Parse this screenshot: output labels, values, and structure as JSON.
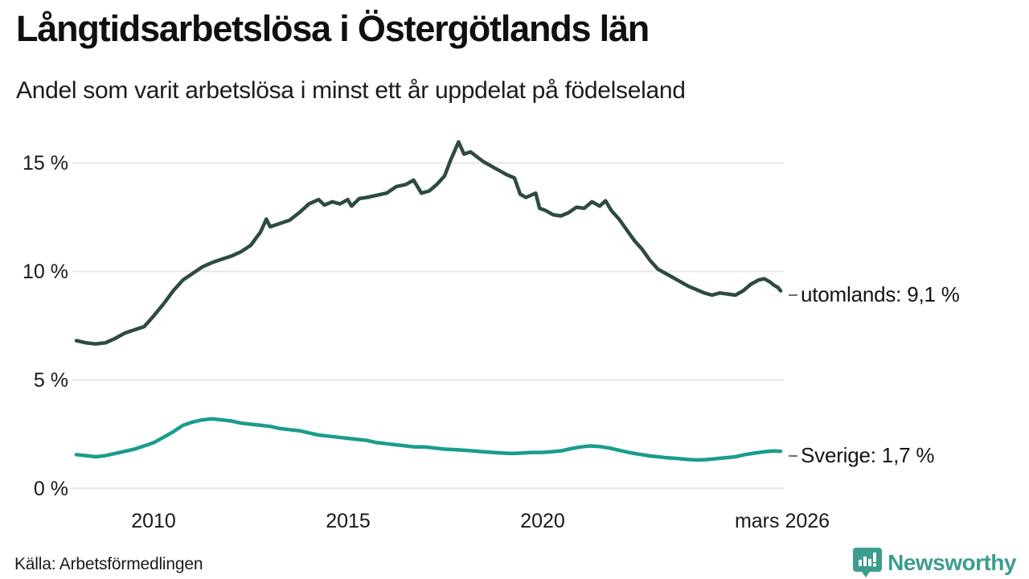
{
  "header": {
    "title": "Långtidsarbetslösa i Östergötlands län",
    "subtitle": "Andel som varit arbetslösa i minst ett år uppdelat på födelseland"
  },
  "footer": {
    "source": "Källa: Arbetsförmedlingen",
    "brand_name": "Newsworthy"
  },
  "colors": {
    "series_utomlands": "#2d4a43",
    "series_sverige": "#1a9c8c",
    "gridline": "#e8e8ea",
    "text": "#141414",
    "brand_teal": "#3d9c8e",
    "leader_dash": "#6f6f6f",
    "background": "#ffffff"
  },
  "chart_data": {
    "type": "line",
    "title": "Långtidsarbetslösa i Östergötlands län",
    "subtitle": "Andel som varit arbetslösa i minst ett år uppdelat på födelseland",
    "xlabel": "",
    "ylabel": "",
    "unit": "%",
    "grid": true,
    "legend_position": "end-of-line-labels-right",
    "x_range": [
      2008.0,
      2026.25
    ],
    "y_range": [
      0,
      16.2
    ],
    "x_axis": {
      "ticks": [
        {
          "x": 2010,
          "label": "2010"
        },
        {
          "x": 2015,
          "label": "2015"
        },
        {
          "x": 2020,
          "label": "2020"
        },
        {
          "x": 2026.17,
          "label": "mars 2026"
        }
      ]
    },
    "y_axis": {
      "ticks": [
        {
          "v": 0,
          "label": "0 %"
        },
        {
          "v": 5,
          "label": "5 %"
        },
        {
          "v": 10,
          "label": "10 %"
        },
        {
          "v": 15,
          "label": "15 %"
        }
      ]
    },
    "series": [
      {
        "name": "utomlands",
        "end_label": "utomlands: 9,1 %",
        "last_value_text": "9,1 %",
        "color": "#2d4a43",
        "points": [
          [
            2008.0,
            6.8
          ],
          [
            2008.25,
            6.7
          ],
          [
            2008.5,
            6.65
          ],
          [
            2008.75,
            6.7
          ],
          [
            2009.0,
            6.9
          ],
          [
            2009.25,
            7.15
          ],
          [
            2009.5,
            7.3
          ],
          [
            2009.75,
            7.45
          ],
          [
            2010.0,
            7.95
          ],
          [
            2010.25,
            8.5
          ],
          [
            2010.5,
            9.1
          ],
          [
            2010.75,
            9.6
          ],
          [
            2011.0,
            9.9
          ],
          [
            2011.25,
            10.2
          ],
          [
            2011.5,
            10.4
          ],
          [
            2011.75,
            10.55
          ],
          [
            2012.0,
            10.7
          ],
          [
            2012.25,
            10.9
          ],
          [
            2012.5,
            11.2
          ],
          [
            2012.75,
            11.8
          ],
          [
            2012.9,
            12.4
          ],
          [
            2013.0,
            12.05
          ],
          [
            2013.25,
            12.2
          ],
          [
            2013.5,
            12.35
          ],
          [
            2013.75,
            12.7
          ],
          [
            2014.0,
            13.1
          ],
          [
            2014.25,
            13.3
          ],
          [
            2014.4,
            13.05
          ],
          [
            2014.6,
            13.2
          ],
          [
            2014.8,
            13.1
          ],
          [
            2015.0,
            13.3
          ],
          [
            2015.1,
            13.0
          ],
          [
            2015.3,
            13.35
          ],
          [
            2015.5,
            13.4
          ],
          [
            2015.75,
            13.5
          ],
          [
            2016.0,
            13.6
          ],
          [
            2016.25,
            13.9
          ],
          [
            2016.5,
            14.0
          ],
          [
            2016.7,
            14.2
          ],
          [
            2016.9,
            13.6
          ],
          [
            2017.1,
            13.7
          ],
          [
            2017.3,
            14.0
          ],
          [
            2017.5,
            14.4
          ],
          [
            2017.65,
            15.1
          ],
          [
            2017.86,
            15.96
          ],
          [
            2018.0,
            15.4
          ],
          [
            2018.17,
            15.5
          ],
          [
            2018.35,
            15.25
          ],
          [
            2018.5,
            15.05
          ],
          [
            2018.7,
            14.85
          ],
          [
            2018.9,
            14.65
          ],
          [
            2019.1,
            14.45
          ],
          [
            2019.3,
            14.3
          ],
          [
            2019.45,
            13.55
          ],
          [
            2019.6,
            13.4
          ],
          [
            2019.85,
            13.6
          ],
          [
            2019.95,
            12.9
          ],
          [
            2020.1,
            12.8
          ],
          [
            2020.3,
            12.6
          ],
          [
            2020.5,
            12.55
          ],
          [
            2020.7,
            12.7
          ],
          [
            2020.9,
            12.95
          ],
          [
            2021.1,
            12.9
          ],
          [
            2021.3,
            13.2
          ],
          [
            2021.5,
            13.0
          ],
          [
            2021.65,
            13.25
          ],
          [
            2021.8,
            12.8
          ],
          [
            2022.0,
            12.4
          ],
          [
            2022.2,
            11.9
          ],
          [
            2022.4,
            11.4
          ],
          [
            2022.6,
            11.0
          ],
          [
            2022.8,
            10.5
          ],
          [
            2023.0,
            10.1
          ],
          [
            2023.2,
            9.9
          ],
          [
            2023.4,
            9.7
          ],
          [
            2023.6,
            9.5
          ],
          [
            2023.8,
            9.3
          ],
          [
            2024.0,
            9.15
          ],
          [
            2024.2,
            9.0
          ],
          [
            2024.4,
            8.9
          ],
          [
            2024.6,
            9.0
          ],
          [
            2024.8,
            8.95
          ],
          [
            2025.0,
            8.9
          ],
          [
            2025.2,
            9.1
          ],
          [
            2025.4,
            9.4
          ],
          [
            2025.6,
            9.6
          ],
          [
            2025.75,
            9.65
          ],
          [
            2025.9,
            9.5
          ],
          [
            2026.0,
            9.35
          ],
          [
            2026.1,
            9.25
          ],
          [
            2026.17,
            9.1
          ]
        ]
      },
      {
        "name": "Sverige",
        "end_label": "Sverige: 1,7 %",
        "last_value_text": "1,7 %",
        "color": "#1a9c8c",
        "points": [
          [
            2008.0,
            1.55
          ],
          [
            2008.25,
            1.5
          ],
          [
            2008.5,
            1.45
          ],
          [
            2008.75,
            1.5
          ],
          [
            2009.0,
            1.6
          ],
          [
            2009.25,
            1.7
          ],
          [
            2009.5,
            1.8
          ],
          [
            2009.75,
            1.95
          ],
          [
            2010.0,
            2.1
          ],
          [
            2010.25,
            2.35
          ],
          [
            2010.5,
            2.6
          ],
          [
            2010.75,
            2.9
          ],
          [
            2011.0,
            3.05
          ],
          [
            2011.25,
            3.15
          ],
          [
            2011.5,
            3.2
          ],
          [
            2011.75,
            3.15
          ],
          [
            2012.0,
            3.1
          ],
          [
            2012.25,
            3.0
          ],
          [
            2012.5,
            2.95
          ],
          [
            2012.75,
            2.9
          ],
          [
            2013.0,
            2.85
          ],
          [
            2013.25,
            2.75
          ],
          [
            2013.5,
            2.7
          ],
          [
            2013.75,
            2.65
          ],
          [
            2014.0,
            2.55
          ],
          [
            2014.25,
            2.45
          ],
          [
            2014.5,
            2.4
          ],
          [
            2014.75,
            2.35
          ],
          [
            2015.0,
            2.3
          ],
          [
            2015.25,
            2.25
          ],
          [
            2015.5,
            2.2
          ],
          [
            2015.75,
            2.1
          ],
          [
            2016.0,
            2.05
          ],
          [
            2016.25,
            2.0
          ],
          [
            2016.5,
            1.95
          ],
          [
            2016.75,
            1.9
          ],
          [
            2017.0,
            1.9
          ],
          [
            2017.25,
            1.85
          ],
          [
            2017.5,
            1.8
          ],
          [
            2017.75,
            1.78
          ],
          [
            2018.0,
            1.75
          ],
          [
            2018.25,
            1.72
          ],
          [
            2018.5,
            1.68
          ],
          [
            2018.75,
            1.65
          ],
          [
            2019.0,
            1.62
          ],
          [
            2019.25,
            1.6
          ],
          [
            2019.5,
            1.62
          ],
          [
            2019.75,
            1.65
          ],
          [
            2020.0,
            1.65
          ],
          [
            2020.25,
            1.68
          ],
          [
            2020.5,
            1.72
          ],
          [
            2020.75,
            1.82
          ],
          [
            2021.0,
            1.9
          ],
          [
            2021.25,
            1.95
          ],
          [
            2021.5,
            1.92
          ],
          [
            2021.75,
            1.85
          ],
          [
            2022.0,
            1.75
          ],
          [
            2022.25,
            1.65
          ],
          [
            2022.5,
            1.57
          ],
          [
            2022.75,
            1.5
          ],
          [
            2023.0,
            1.45
          ],
          [
            2023.25,
            1.4
          ],
          [
            2023.5,
            1.37
          ],
          [
            2023.75,
            1.33
          ],
          [
            2024.0,
            1.3
          ],
          [
            2024.25,
            1.32
          ],
          [
            2024.5,
            1.36
          ],
          [
            2024.75,
            1.4
          ],
          [
            2025.0,
            1.45
          ],
          [
            2025.25,
            1.55
          ],
          [
            2025.5,
            1.62
          ],
          [
            2025.75,
            1.68
          ],
          [
            2026.0,
            1.72
          ],
          [
            2026.17,
            1.7
          ]
        ]
      }
    ]
  }
}
